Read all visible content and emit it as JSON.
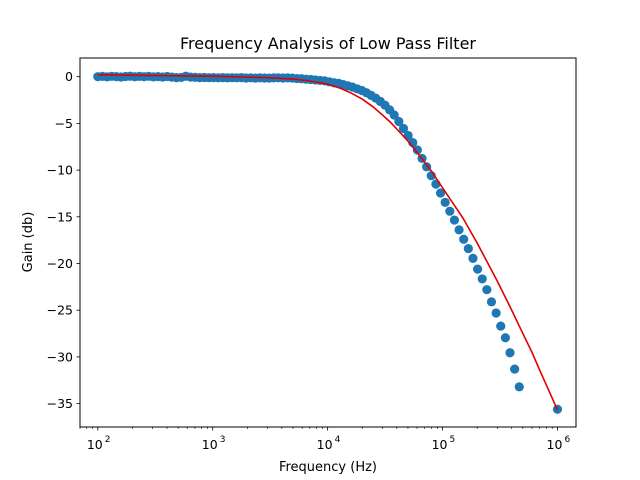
{
  "chart_data": {
    "type": "scatter",
    "title": "Frequency Analysis of Low Pass Filter",
    "xlabel": "Frequency (Hz)",
    "ylabel": "Gain (db)",
    "xscale": "log",
    "xlim": [
      70,
      1450000
    ],
    "ylim": [
      -37.5,
      2.0
    ],
    "grid": false,
    "xticks": [
      {
        "value": 100,
        "base": "10",
        "exp": "2"
      },
      {
        "value": 1000,
        "base": "10",
        "exp": "3"
      },
      {
        "value": 10000,
        "base": "10",
        "exp": "4"
      },
      {
        "value": 100000,
        "base": "10",
        "exp": "5"
      },
      {
        "value": 1000000,
        "base": "10",
        "exp": "6"
      }
    ],
    "yticks": [
      {
        "value": 0,
        "label": "0"
      },
      {
        "value": -5,
        "label": "−5"
      },
      {
        "value": -10,
        "label": "−10"
      },
      {
        "value": -15,
        "label": "−15"
      },
      {
        "value": -20,
        "label": "−20"
      },
      {
        "value": -25,
        "label": "−25"
      },
      {
        "value": -30,
        "label": "−30"
      },
      {
        "value": -35,
        "label": "−35"
      }
    ],
    "series": [
      {
        "kind": "scatter",
        "color": "#1f77b4",
        "points": [
          [
            100,
            0.0
          ],
          [
            109.7,
            0.03
          ],
          [
            120.4,
            -0.02
          ],
          [
            132.1,
            0.04
          ],
          [
            144.9,
            0.01
          ],
          [
            159.0,
            -0.03
          ],
          [
            174.5,
            0.02
          ],
          [
            191.5,
            0.05
          ],
          [
            210.1,
            -0.01
          ],
          [
            230.5,
            0.03
          ],
          [
            252.9,
            0.0
          ],
          [
            277.5,
            0.04
          ],
          [
            304.5,
            -0.02
          ],
          [
            334.1,
            0.01
          ],
          [
            366.6,
            -0.03
          ],
          [
            402.3,
            0.02
          ],
          [
            441.4,
            -0.05
          ],
          [
            484.3,
            -0.1
          ],
          [
            531.4,
            -0.08
          ],
          [
            583.1,
            0.05
          ],
          [
            639.8,
            -0.04
          ],
          [
            702.0,
            -0.07
          ],
          [
            770.3,
            -0.1
          ],
          [
            845.2,
            -0.09
          ],
          [
            927.4,
            -0.11
          ],
          [
            1017.6,
            -0.1
          ],
          [
            1116.6,
            -0.12
          ],
          [
            1225.1,
            -0.1
          ],
          [
            1344.3,
            -0.13
          ],
          [
            1475.0,
            -0.11
          ],
          [
            1618.5,
            -0.12
          ],
          [
            1775.9,
            -0.1
          ],
          [
            1948.6,
            -0.14
          ],
          [
            2138.1,
            -0.12
          ],
          [
            2346.0,
            -0.15
          ],
          [
            2574.2,
            -0.13
          ],
          [
            2824.5,
            -0.14
          ],
          [
            3099.2,
            -0.15
          ],
          [
            3400.6,
            -0.13
          ],
          [
            3731.3,
            -0.12
          ],
          [
            4094.2,
            -0.14
          ],
          [
            4492.3,
            -0.13
          ],
          [
            4929.2,
            -0.15
          ],
          [
            5408.6,
            -0.2
          ],
          [
            5934.5,
            -0.22
          ],
          [
            6511.7,
            -0.27
          ],
          [
            7145.0,
            -0.3
          ],
          [
            7839.8,
            -0.35
          ],
          [
            8602.2,
            -0.4
          ],
          [
            9438.8,
            -0.45
          ],
          [
            10356.7,
            -0.55
          ],
          [
            11364.0,
            -0.65
          ],
          [
            12469.1,
            -0.72
          ],
          [
            13681.8,
            -0.85
          ],
          [
            15012.3,
            -0.98
          ],
          [
            16472.3,
            -1.12
          ],
          [
            18074.2,
            -1.3
          ],
          [
            19832.0,
            -1.48
          ],
          [
            21760.7,
            -1.72
          ],
          [
            23876.9,
            -2.0
          ],
          [
            26199.0,
            -2.3
          ],
          [
            28746.8,
            -2.65
          ],
          [
            31542.5,
            -3.05
          ],
          [
            34609.9,
            -3.55
          ],
          [
            37975.7,
            -4.1
          ],
          [
            41668.8,
            -4.8
          ],
          [
            45721.1,
            -5.55
          ],
          [
            50167.5,
            -6.3
          ],
          [
            55046.3,
            -7.05
          ],
          [
            60399.5,
            -7.85
          ],
          [
            66273.3,
            -8.75
          ],
          [
            72718.4,
            -9.65
          ],
          [
            79790.2,
            -10.6
          ],
          [
            87549.8,
            -11.5
          ],
          [
            96064.0,
            -12.45
          ],
          [
            105406.3,
            -13.45
          ],
          [
            115657.1,
            -14.4
          ],
          [
            126904.7,
            -15.35
          ],
          [
            139246.2,
            -16.4
          ],
          [
            152787.9,
            -17.4
          ],
          [
            167646.6,
            -18.4
          ],
          [
            183950.2,
            -19.45
          ],
          [
            201839.2,
            -20.6
          ],
          [
            221468.0,
            -21.65
          ],
          [
            243005.8,
            -22.8
          ],
          [
            266638.1,
            -24.1
          ],
          [
            292568.6,
            -25.3
          ],
          [
            321020.9,
            -26.7
          ],
          [
            352240.2,
            -27.95
          ],
          [
            386495.6,
            -29.55
          ],
          [
            424082.1,
            -31.3
          ],
          [
            465324.0,
            -33.2
          ],
          [
            1000000,
            -35.6
          ]
        ]
      },
      {
        "kind": "line",
        "color": "#e00000",
        "points": [
          [
            100,
            0.2
          ],
          [
            1000,
            0.05
          ],
          [
            3000,
            -0.1
          ],
          [
            5000,
            -0.25
          ],
          [
            7000,
            -0.45
          ],
          [
            10000,
            -0.8
          ],
          [
            13000,
            -1.25
          ],
          [
            16000,
            -1.75
          ],
          [
            20000,
            -2.4
          ],
          [
            25000,
            -3.25
          ],
          [
            30000,
            -4.1
          ],
          [
            35000,
            -4.85
          ],
          [
            40000,
            -5.6
          ],
          [
            50000,
            -6.9
          ],
          [
            60000,
            -8.1
          ],
          [
            80000,
            -10.1
          ],
          [
            100000,
            -11.9
          ],
          [
            150000,
            -15.1
          ],
          [
            200000,
            -17.8
          ],
          [
            300000,
            -21.9
          ],
          [
            400000,
            -25.0
          ],
          [
            500000,
            -27.5
          ],
          [
            600000,
            -29.5
          ],
          [
            700000,
            -31.4
          ],
          [
            800000,
            -33.0
          ],
          [
            900000,
            -34.4
          ],
          [
            1000000,
            -35.7
          ]
        ]
      }
    ]
  }
}
